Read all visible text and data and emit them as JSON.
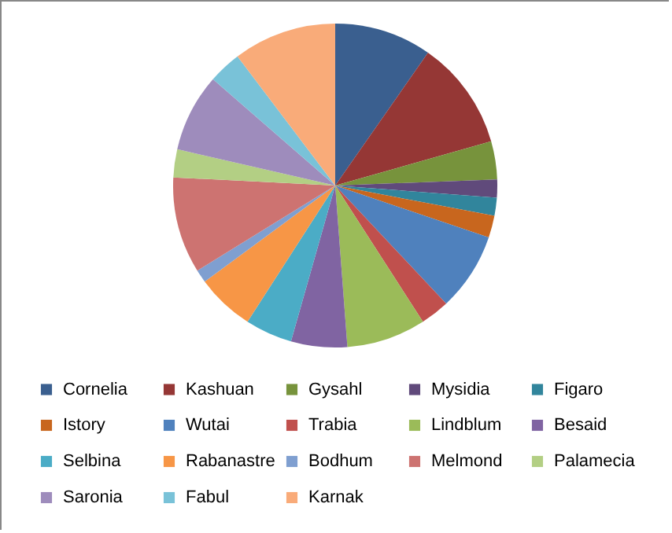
{
  "chart_data": {
    "type": "pie",
    "categories": [
      "Cornelia",
      "Kashuan",
      "Gysahl",
      "Mysidia",
      "Figaro",
      "Istory",
      "Wutai",
      "Trabia",
      "Lindblum",
      "Besaid",
      "Selbina",
      "Rabanastre",
      "Bodhum",
      "Melmond",
      "Palamecia",
      "Saronia",
      "Fabul",
      "Karnak"
    ],
    "values": [
      9.7,
      10.9,
      3.8,
      1.8,
      1.8,
      2.2,
      7.8,
      2.9,
      7.9,
      5.6,
      4.7,
      5.8,
      1.3,
      9.6,
      2.8,
      7.8,
      3.3,
      10.3
    ],
    "colors": [
      "#3a5f8f",
      "#953735",
      "#77933c",
      "#604a7b",
      "#31859c",
      "#c8661e",
      "#4f81bd",
      "#c0504d",
      "#9bbb59",
      "#8064a2",
      "#4bacc6",
      "#f79646",
      "#7f9fd0",
      "#cd7371",
      "#b3cf84",
      "#9e8cbc",
      "#79c2d8",
      "#f9ab79"
    ],
    "legend": "bottom"
  }
}
